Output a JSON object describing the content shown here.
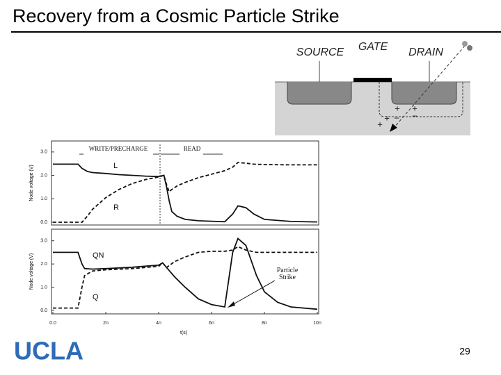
{
  "title": "Recovery from a Cosmic Particle Strike",
  "page_number": "29",
  "logo": "UCLA",
  "diagram": {
    "source": "SOURCE",
    "gate": "GATE",
    "drain": "DRAIN",
    "charges": [
      "+",
      "+",
      "+",
      "−",
      "+",
      "−"
    ]
  },
  "chart_data": [
    {
      "type": "line",
      "y_label": "Node voltage (V)",
      "annotations": [
        "WRITE/PRECHARGE",
        "READ"
      ],
      "xlim": [
        0,
        1e-08
      ],
      "ylim": [
        -0.12,
        3.47
      ],
      "yticks": [
        {
          "value": 0,
          "label": "0.0"
        },
        {
          "value": 1,
          "label": "1.0"
        },
        {
          "value": 2,
          "label": "2.0"
        },
        {
          "value": 3,
          "label": "3.0"
        }
      ],
      "x": [
        0,
        9.5e-10,
        1.1e-09,
        1.3e-09,
        1.5e-09,
        2e-09,
        2.5e-09,
        3e-09,
        3.5e-09,
        4e-09,
        4.2e-09,
        4.3e-09,
        4.4e-09,
        4.5e-09,
        4.7e-09,
        5e-09,
        5.5e-09,
        6e-09,
        6.5e-09,
        6.8e-09,
        7e-09,
        7.3e-09,
        7.6e-09,
        8e-09,
        9e-09,
        1e-08
      ],
      "series": [
        {
          "name": "L",
          "color": "#111111",
          "dash": false,
          "values": [
            2.48,
            2.48,
            2.3,
            2.17,
            2.12,
            2.08,
            2.03,
            2.0,
            1.97,
            1.95,
            2.0,
            1.5,
            0.9,
            0.45,
            0.25,
            0.12,
            0.06,
            0.04,
            0.02,
            0.35,
            0.7,
            0.62,
            0.35,
            0.12,
            0.03,
            0.01
          ]
        },
        {
          "name": "R",
          "color": "#111111",
          "dash": true,
          "values": [
            0.0,
            0.0,
            0.0,
            0.25,
            0.55,
            1.05,
            1.4,
            1.65,
            1.82,
            1.93,
            2.0,
            1.6,
            1.3,
            1.4,
            1.55,
            1.7,
            1.9,
            2.05,
            2.2,
            2.35,
            2.55,
            2.52,
            2.48,
            2.46,
            2.45,
            2.45
          ]
        }
      ]
    },
    {
      "type": "line",
      "y_label": "Node voltage (V)",
      "x_label": "t(s)",
      "annotations": [
        "Particle Strike"
      ],
      "xlim": [
        0,
        1e-08
      ],
      "ylim": [
        -0.15,
        3.5
      ],
      "xticks": [
        {
          "value": 0,
          "label": "0.0"
        },
        {
          "value": 2e-09,
          "label": "2n"
        },
        {
          "value": 4e-09,
          "label": "4n"
        },
        {
          "value": 6e-09,
          "label": "6n"
        },
        {
          "value": 8e-09,
          "label": "8n"
        },
        {
          "value": 1e-08,
          "label": "10n"
        }
      ],
      "yticks": [
        {
          "value": 0,
          "label": "0.0"
        },
        {
          "value": 1,
          "label": "1.0"
        },
        {
          "value": 2,
          "label": "2.0"
        },
        {
          "value": 3,
          "label": "3.0"
        }
      ],
      "x": [
        0,
        9.5e-10,
        1.1e-09,
        1.2e-09,
        1.5e-09,
        2e-09,
        3e-09,
        4e-09,
        4.15e-09,
        4.3e-09,
        4.6e-09,
        5e-09,
        5.5e-09,
        6e-09,
        6.5e-09,
        6.8e-09,
        7e-09,
        7.3e-09,
        7.7e-09,
        8e-09,
        8.5e-09,
        9e-09,
        1e-08
      ],
      "series": [
        {
          "name": "QN",
          "color": "#111111",
          "dash": false,
          "values": [
            2.5,
            2.5,
            2.0,
            1.8,
            1.78,
            1.8,
            1.86,
            1.95,
            2.05,
            1.85,
            1.45,
            1.0,
            0.5,
            0.25,
            0.15,
            2.5,
            3.1,
            2.8,
            1.5,
            0.8,
            0.35,
            0.15,
            0.05
          ]
        },
        {
          "name": "Q",
          "color": "#111111",
          "dash": true,
          "values": [
            0.1,
            0.1,
            1.0,
            1.5,
            1.7,
            1.75,
            1.8,
            1.9,
            2.05,
            1.85,
            2.1,
            2.3,
            2.5,
            2.55,
            2.55,
            2.6,
            2.75,
            2.6,
            2.5,
            2.5,
            2.5,
            2.5,
            2.5
          ]
        }
      ]
    }
  ]
}
